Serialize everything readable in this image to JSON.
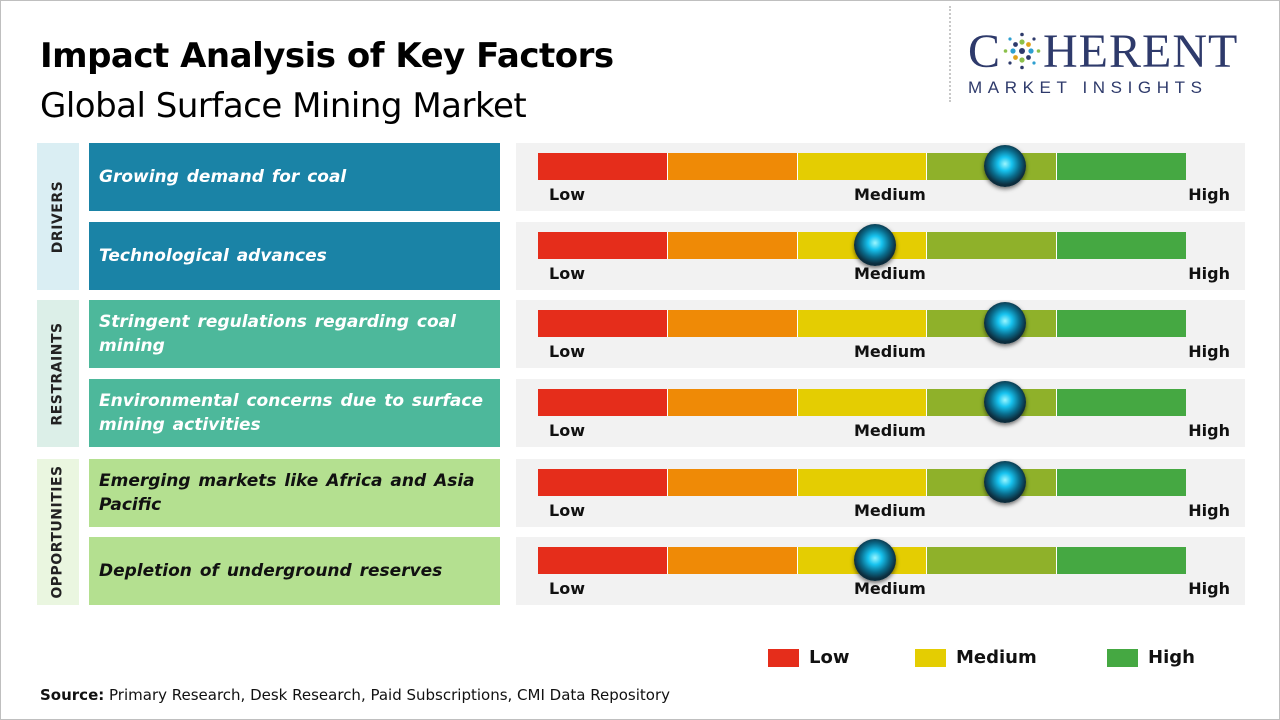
{
  "title": "Impact Analysis of Key Factors",
  "subtitle": "Global Surface Mining Market",
  "logo": {
    "top_left": "C",
    "top_right": "HERENT",
    "bottom": "MARKET INSIGHTS"
  },
  "source_label": "Source:",
  "source_text": " Primary Research, Desk Research, Paid Subscriptions, CMI Data Repository",
  "colors": {
    "drivers_factor": "#1a83a6",
    "drivers_label_bg": "#daeef3",
    "restraints_factor": "#4db89b",
    "restraints_label_bg": "#dcefe8",
    "opportunities_factor": "#b4e090",
    "opportunities_label_bg": "#eaf6e0",
    "segments": [
      "#e52d1b",
      "#ef8a06",
      "#e4cd02",
      "#8fb12a",
      "#45a842"
    ]
  },
  "chart_data": {
    "type": "gauge",
    "scale_labels": [
      "Low",
      "Medium",
      "High"
    ],
    "scale_range": [
      0,
      100
    ],
    "segments": 5,
    "categories": [
      {
        "name": "DRIVERS",
        "factors": [
          {
            "label": "Growing demand for coal",
            "impact": 72
          },
          {
            "label": "Technological advances",
            "impact": 52
          }
        ]
      },
      {
        "name": "RESTRAINTS",
        "factors": [
          {
            "label": "Stringent regulations regarding coal mining",
            "impact": 72
          },
          {
            "label": "Environmental concerns due to surface mining activities",
            "impact": 72
          }
        ]
      },
      {
        "name": "OPPORTUNITIES",
        "factors": [
          {
            "label": "Emerging markets like Africa and Asia Pacific",
            "impact": 72
          },
          {
            "label": "Depletion of underground reserves",
            "impact": 52
          }
        ]
      }
    ],
    "legend": [
      {
        "label": "Low",
        "color": "#e52d1b"
      },
      {
        "label": "Medium",
        "color": "#e4cd02"
      },
      {
        "label": "High",
        "color": "#45a842"
      }
    ]
  }
}
